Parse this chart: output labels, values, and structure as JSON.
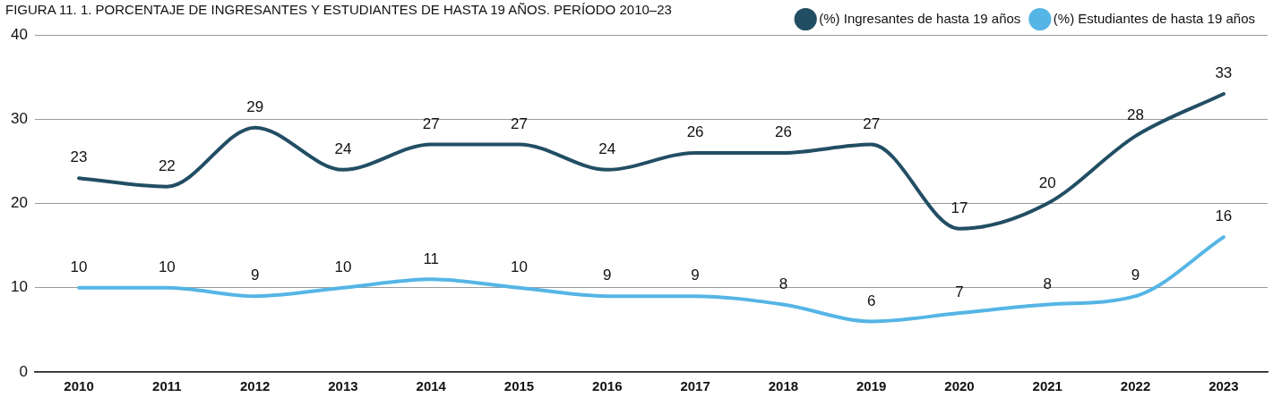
{
  "chart_data": {
    "type": "line",
    "title": "FIGURA 11. 1. PORCENTAJE DE INGRESANTES  Y ESTUDIANTES DE HASTA 19 AÑOS. PERÍODO 2010–23",
    "categories": [
      "2010",
      "2011",
      "2012",
      "2013",
      "2014",
      "2015",
      "2016",
      "2017",
      "2018",
      "2019",
      "2020",
      "2021",
      "2022",
      "2023"
    ],
    "series": [
      {
        "name": "(%) Ingresantes de hasta 19 años",
        "color": "#224e64",
        "values": [
          23,
          22,
          29,
          24,
          27,
          27,
          24,
          26,
          26,
          27,
          17,
          20,
          28,
          33
        ]
      },
      {
        "name": "(%) Estudiantes de hasta 19 años",
        "color": "#55b5e5",
        "values": [
          10,
          10,
          9,
          10,
          11,
          10,
          9,
          9,
          8,
          6,
          7,
          8,
          9,
          16
        ]
      }
    ],
    "ylim": [
      0,
      40
    ],
    "yticks": [
      0,
      10,
      20,
      30,
      40
    ],
    "grid": "y",
    "legend": "top right",
    "marker": "none",
    "line_style": "solid",
    "data_labels": true
  }
}
